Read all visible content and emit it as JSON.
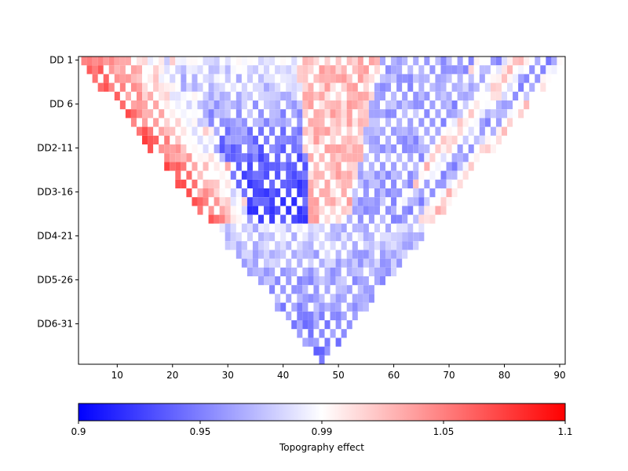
{
  "chart_data": {
    "type": "heatmap",
    "title": "",
    "xlabel": "",
    "ylabel": "",
    "x_ticks": [
      10,
      20,
      30,
      40,
      50,
      60,
      70,
      80,
      90
    ],
    "xlim": [
      3,
      91
    ],
    "y_tick_labels": [
      "DD 1",
      "DD 6",
      "DD2-11",
      "DD3-16",
      "DD4-21",
      "DD5-26",
      "DD6-31"
    ],
    "row_count": 35,
    "colorbar": {
      "label": "Topography effect",
      "colormap": "bwr",
      "vmin": 0.9,
      "vmax": 1.1,
      "tick_values": [
        0.9,
        0.95,
        0.99,
        1.05,
        1.1
      ],
      "tick_labels": [
        "0.9",
        "0.95",
        "0.99",
        "1.05",
        "1.1"
      ],
      "colors": {
        "low": "#0000ff",
        "mid": "#ffffff",
        "high": "#ff0000"
      }
    },
    "shape": "inverted-triangle",
    "apex_x": 47,
    "pattern_note": "checkerboard cells; red band along upper-left diagonal, blue concentration toward bottom apex, mixed red/blue in upper region"
  }
}
